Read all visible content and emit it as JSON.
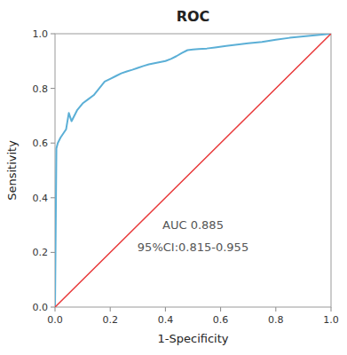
{
  "chart_data": {
    "type": "line",
    "title": "ROC",
    "xlabel": "1-Specificity",
    "ylabel": "Sensitivity",
    "annotations": [
      "AUC 0.885",
      "95%CI:0.815-0.955"
    ],
    "series": [
      {
        "color": "#5bafd6",
        "x": [
          0.0,
          0.005,
          0.01,
          0.02,
          0.04,
          0.05,
          0.06,
          0.08,
          0.1,
          0.12,
          0.14,
          0.16,
          0.18,
          0.2,
          0.22,
          0.24,
          0.26,
          0.28,
          0.3,
          0.32,
          0.34,
          0.36,
          0.38,
          0.4,
          0.42,
          0.44,
          0.46,
          0.48,
          0.5,
          0.52,
          0.55,
          0.58,
          0.62,
          0.66,
          0.7,
          0.75,
          0.8,
          0.85,
          0.9,
          0.95,
          1.0
        ],
        "values": [
          0.0,
          0.58,
          0.6,
          0.62,
          0.65,
          0.71,
          0.68,
          0.72,
          0.745,
          0.76,
          0.775,
          0.8,
          0.825,
          0.835,
          0.845,
          0.855,
          0.862,
          0.868,
          0.875,
          0.882,
          0.888,
          0.892,
          0.896,
          0.9,
          0.908,
          0.918,
          0.93,
          0.94,
          0.942,
          0.944,
          0.946,
          0.95,
          0.955,
          0.96,
          0.965,
          0.97,
          0.978,
          0.985,
          0.99,
          0.995,
          1.0
        ]
      },
      {
        "color": "#e8393a",
        "x": [
          0,
          1
        ],
        "values": [
          0,
          1
        ]
      }
    ],
    "xlim": [
      0.0,
      1.0
    ],
    "ylim": [
      0.0,
      1.0
    ],
    "xticks": [
      {
        "value": 0.0,
        "label": "0.0"
      },
      0.2,
      0.4,
      0.6,
      0.8,
      {
        "value": 1.0,
        "label": "1.0"
      }
    ],
    "yticks": [
      {
        "value": 0.0,
        "label": "0.0"
      },
      0.2,
      0.4,
      0.6,
      0.8,
      {
        "value": 1.0,
        "label": "1.0"
      }
    ],
    "grid": false
  }
}
